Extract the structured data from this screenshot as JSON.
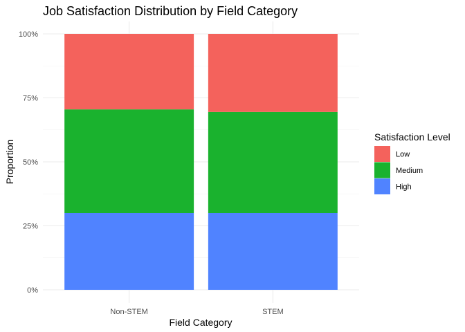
{
  "chart_data": {
    "type": "bar",
    "stacked": true,
    "title": "Job Satisfaction Distribution by Field Category",
    "xlabel": "Field Category",
    "ylabel": "Proportion",
    "categories": [
      "Non-STEM",
      "STEM"
    ],
    "ylim": [
      0,
      1
    ],
    "yticks": [
      0,
      0.25,
      0.5,
      0.75,
      1
    ],
    "ytick_labels": [
      "0%",
      "25%",
      "50%",
      "75%",
      "100%"
    ],
    "grid": true,
    "legend": {
      "title": "Satisfaction Level",
      "position": "right"
    },
    "series": [
      {
        "name": "High",
        "color": "#5083FF",
        "values": [
          0.3,
          0.3
        ]
      },
      {
        "name": "Medium",
        "color": "#1AB22E",
        "values": [
          0.405,
          0.395
        ]
      },
      {
        "name": "Low",
        "color": "#F4625C",
        "values": [
          0.295,
          0.305
        ]
      }
    ],
    "legend_order": [
      "Low",
      "Medium",
      "High"
    ]
  }
}
